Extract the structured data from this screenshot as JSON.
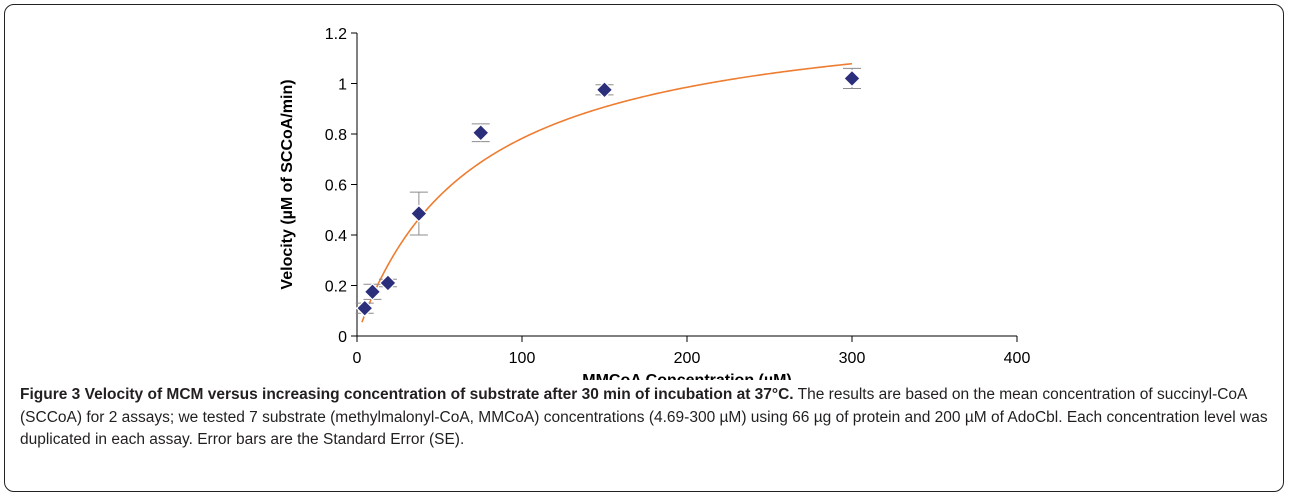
{
  "chart_data": {
    "type": "scatter",
    "xlabel": "MMCoA Concentration (µM)",
    "ylabel": "Velocity (µM of SCCoA/min)",
    "xlim": [
      0,
      400
    ],
    "ylim": [
      0,
      1.2
    ],
    "x_ticks": [
      "0",
      "100",
      "200",
      "300",
      "400"
    ],
    "y_ticks": [
      "0",
      "0.2",
      "0.4",
      "0.6",
      "0.8",
      "1",
      "1.2"
    ],
    "grid": false,
    "legend": "none",
    "marker_color": "#2b2e7a",
    "fit_color": "#ee7d31",
    "errorbar_color": "#8c8c8c",
    "points": [
      {
        "x": 4.69,
        "y": 0.11,
        "err": 0.02
      },
      {
        "x": 9.38,
        "y": 0.175,
        "err": 0.03
      },
      {
        "x": 18.75,
        "y": 0.21,
        "err": 0.015
      },
      {
        "x": 37.5,
        "y": 0.485,
        "err": 0.085
      },
      {
        "x": 75,
        "y": 0.805,
        "err": 0.035
      },
      {
        "x": 150,
        "y": 0.975,
        "err": 0.02
      },
      {
        "x": 300,
        "y": 1.02,
        "err": 0.04
      }
    ],
    "fit": {
      "type": "michaelis-menten",
      "vmax": 1.33,
      "km": 70,
      "x_start": 3
    }
  },
  "caption": {
    "title": "Figure 3 Velocity of MCM versus increasing concentration of substrate after 30 min of incubation at 37°C.",
    "body": " The results are based on the mean concentration of succinyl-CoA (SCCoA) for 2 assays; we tested 7 substrate (methylmalonyl-CoA, MMCoA) concentrations (4.69-300 µM) using 66 µg of protein and 200 µM of AdoCbl. Each concentration level was duplicated in each assay. Error bars are the Standard Error (SE)."
  }
}
